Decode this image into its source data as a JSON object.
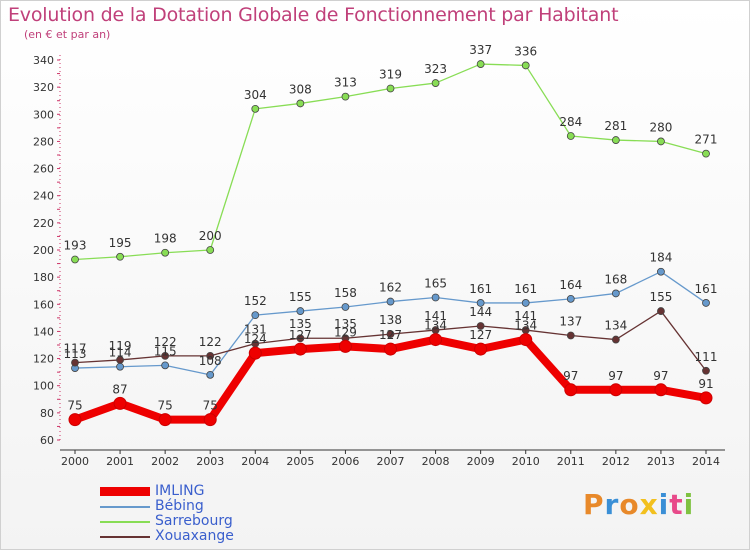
{
  "title": "Evolution de la Dotation Globale de Fonctionnement par Habitant",
  "subtitle": "(en € et par an)",
  "logo_text": "Proxiti",
  "logo_colors": [
    "#e8892a",
    "#3a8fd6",
    "#e8892a",
    "#f2c01e",
    "#3a8fd6",
    "#e84a8a",
    "#7fc241"
  ],
  "chart_data": {
    "type": "line",
    "title": "Evolution de la Dotation Globale de Fonctionnement par Habitant",
    "subtitle": "(en € et par an)",
    "xlabel": "",
    "ylabel": "",
    "x": [
      "2000",
      "2001",
      "2002",
      "2003",
      "2004",
      "2005",
      "2006",
      "2007",
      "2008",
      "2009",
      "2010",
      "2011",
      "2012",
      "2013",
      "2014"
    ],
    "ylim": [
      60,
      340
    ],
    "yticks": [
      60,
      80,
      100,
      120,
      140,
      160,
      180,
      200,
      220,
      240,
      260,
      280,
      300,
      320,
      340
    ],
    "grid": false,
    "legend_position": "bottom-left",
    "series": [
      {
        "name": "IMLING",
        "color": "#ee0000",
        "values": [
          75,
          87,
          75,
          75,
          124,
          127,
          129,
          127,
          134,
          127,
          134,
          97,
          97,
          97,
          91
        ]
      },
      {
        "name": "Bébing",
        "color": "#6699cc",
        "values": [
          113,
          114,
          115,
          108,
          152,
          155,
          158,
          162,
          165,
          161,
          161,
          164,
          168,
          184,
          161
        ]
      },
      {
        "name": "Sarrebourg",
        "color": "#88dd55",
        "values": [
          193,
          195,
          198,
          200,
          304,
          308,
          313,
          319,
          323,
          337,
          336,
          284,
          281,
          280,
          271
        ]
      },
      {
        "name": "Xouaxange",
        "color": "#663333",
        "values": [
          117,
          119,
          122,
          122,
          131,
          135,
          135,
          138,
          141,
          144,
          141,
          137,
          134,
          155,
          111
        ]
      }
    ]
  }
}
